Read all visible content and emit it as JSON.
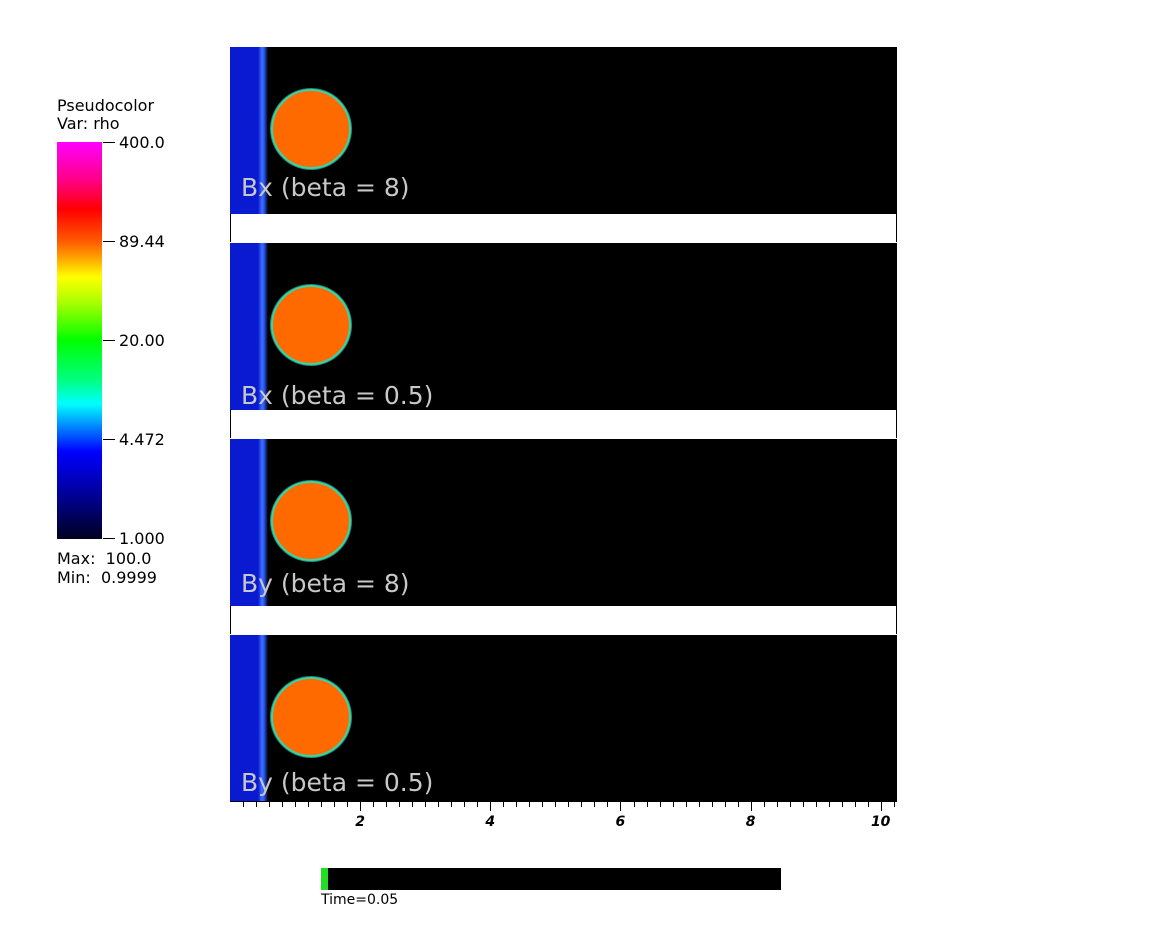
{
  "legend": {
    "title_line1": "Pseudocolor",
    "title_line2": "Var: rho",
    "ticks": [
      "400.0",
      "89.44",
      "20.00",
      "4.472",
      "1.000"
    ],
    "max_label": "Max:  100.0",
    "min_label": "Min:  0.9999"
  },
  "panels": [
    {
      "label": "Bx (beta = 8)"
    },
    {
      "label": "Bx (beta = 0.5)"
    },
    {
      "label": "By (beta = 8)"
    },
    {
      "label": "By (beta = 0.5)"
    }
  ],
  "axis": {
    "labels": [
      "2",
      "4",
      "6",
      "8",
      "10"
    ],
    "range": [
      0,
      10.25
    ]
  },
  "time": {
    "label": "Time=0.05",
    "progress": 0.015
  },
  "colors": {
    "cloud": "#ff6a00",
    "cloud_edge": "#3cd4a0",
    "background": "#000000",
    "inflow": "#0a1ad0"
  }
}
